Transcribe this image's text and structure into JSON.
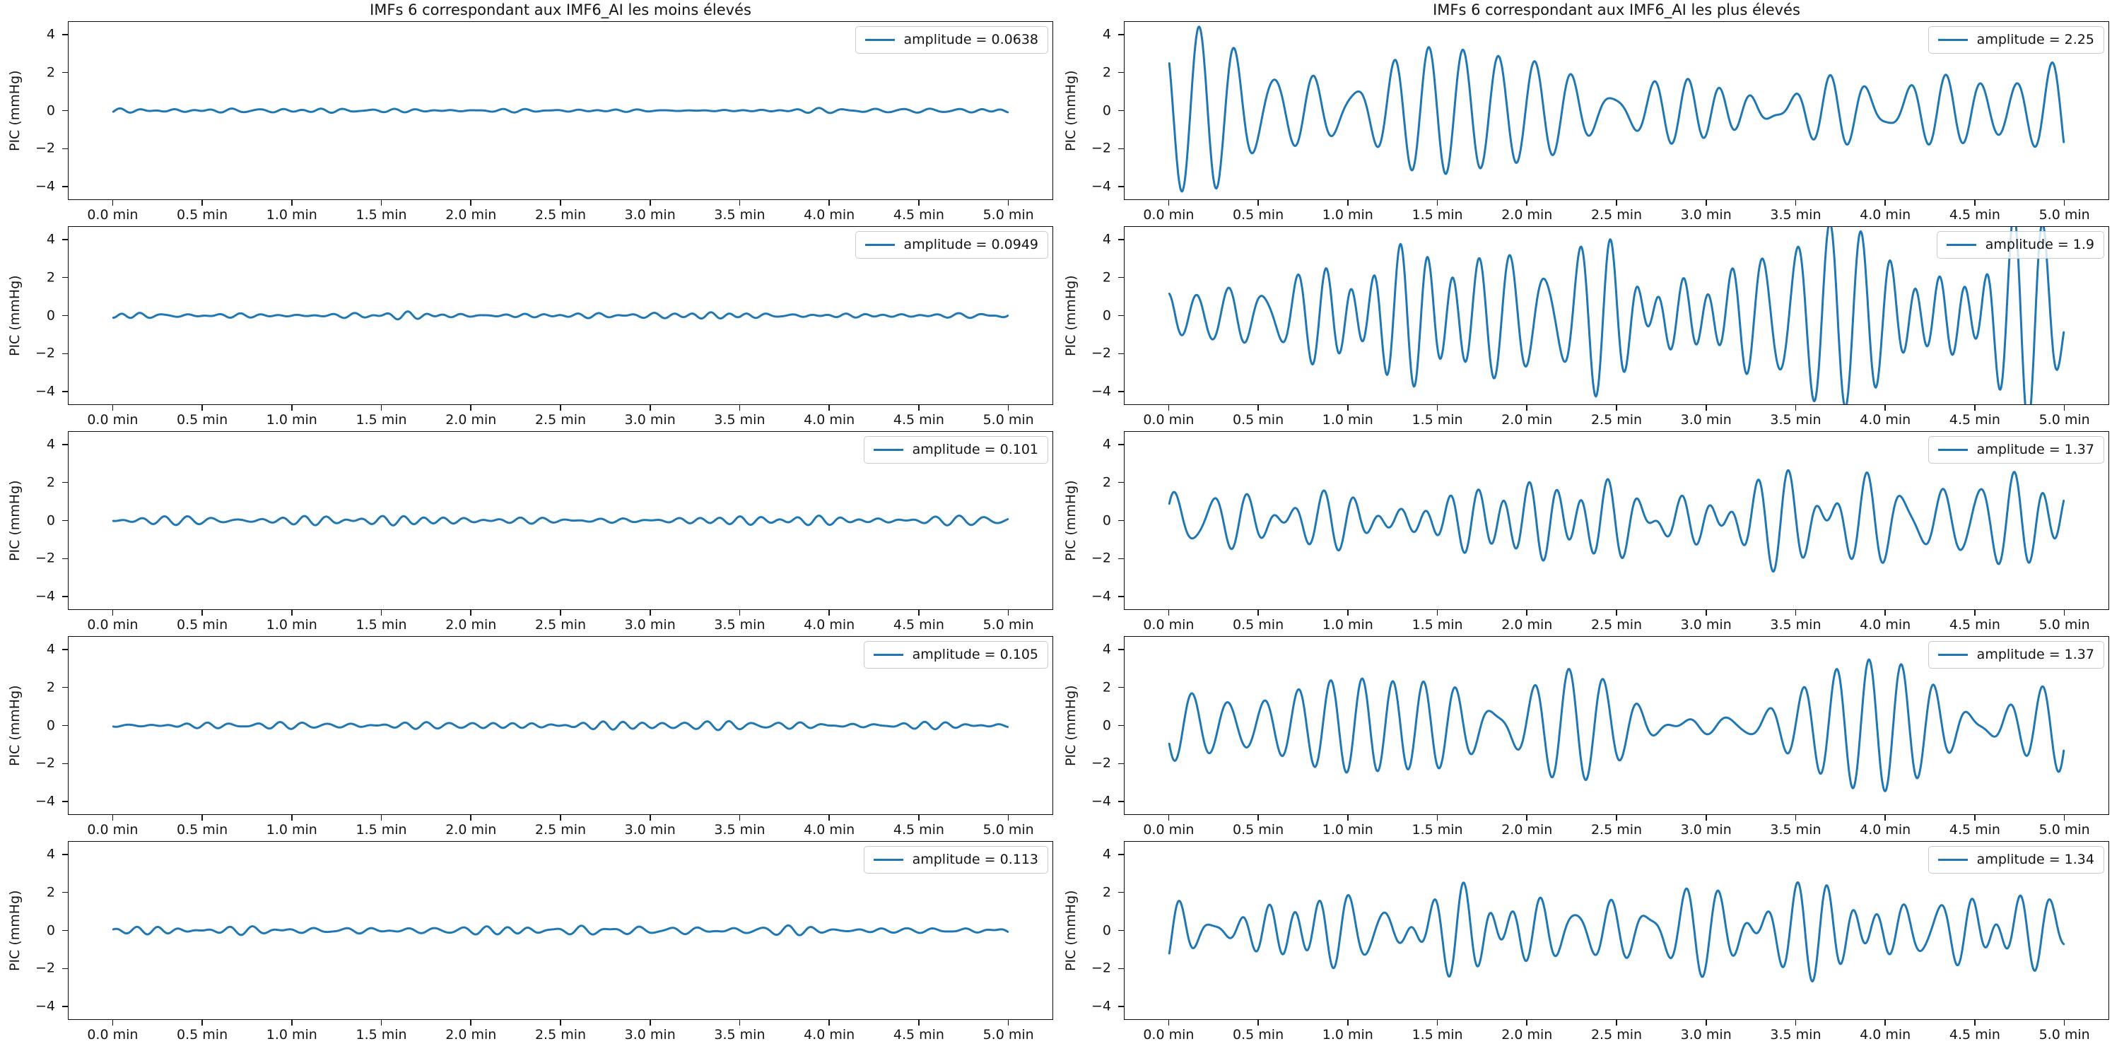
{
  "figure": {
    "background": "#ffffff",
    "text_color": "#141414",
    "line_color": "#1f77b4",
    "left_column_title": "IMFs 6 correspondant aux IMF6_AI les moins élevés",
    "right_column_title": "IMFs 6 correspondant aux IMF6_AI les plus élevés",
    "ylabel": "PIC  (mmHg)",
    "y_tick_labels": [
      "4",
      "2",
      "0",
      "−2",
      "−4"
    ],
    "y_tick_values": [
      4,
      2,
      0,
      -2,
      -4
    ],
    "x_tick_labels": [
      "0.0 min",
      "0.5 min",
      "1.0 min",
      "1.5 min",
      "2.0 min",
      "2.5 min",
      "3.0 min",
      "3.5 min",
      "4.0 min",
      "4.5 min",
      "5.0 min"
    ],
    "x_tick_values": [
      0,
      0.5,
      1,
      1.5,
      2,
      2.5,
      3,
      3.5,
      4,
      4.5,
      5
    ],
    "xlim": [
      -0.25,
      5.25
    ],
    "ylim": [
      -4.7,
      4.7
    ],
    "grid": "off",
    "legend_position": "upper right"
  },
  "chart_data": [
    {
      "type": "line",
      "column": "left",
      "row": 1,
      "title": "IMFs 6 correspondant aux IMF6_AI les moins élevés",
      "ylabel": "PIC  (mmHg)",
      "legend": "amplitude = 0.0638",
      "amplitude": 0.0638,
      "x_range_min": [
        0,
        5
      ],
      "ylim": [
        -4.7,
        4.7
      ],
      "x_unit": "min",
      "description": "near-flat oscillation around 0 mmHg, peak ≈ ±0.14",
      "synth": {
        "seed": 101,
        "peak": 0.14,
        "freq_cpm": [
          6,
          11
        ]
      }
    },
    {
      "type": "line",
      "column": "right",
      "row": 1,
      "title": "IMFs 6 correspondant aux IMF6_AI les plus élevés",
      "ylabel": "PIC  (mmHg)",
      "legend": "amplitude = 2.25",
      "amplitude": 2.25,
      "x_range_min": [
        0,
        5
      ],
      "ylim": [
        -4.7,
        4.7
      ],
      "x_unit": "min",
      "description": "large smooth oscillation, peaks ≈ ±4.4, ~25 cycles over 5 min",
      "synth": {
        "seed": 201,
        "peak": 4.45,
        "freq_cpm": [
          3.5,
          6.5
        ]
      }
    },
    {
      "type": "line",
      "column": "left",
      "row": 2,
      "ylabel": "PIC  (mmHg)",
      "legend": "amplitude = 0.0949",
      "amplitude": 0.0949,
      "x_range_min": [
        0,
        5
      ],
      "ylim": [
        -4.7,
        4.7
      ],
      "x_unit": "min",
      "description": "near-flat oscillation around 0 mmHg, peak ≈ ±0.22",
      "synth": {
        "seed": 102,
        "peak": 0.22,
        "freq_cpm": [
          6,
          11
        ]
      }
    },
    {
      "type": "line",
      "column": "right",
      "row": 2,
      "ylabel": "PIC  (mmHg)",
      "legend": "amplitude = 1.9",
      "amplitude": 1.9,
      "x_range_min": [
        0,
        5
      ],
      "ylim": [
        -4.7,
        4.7
      ],
      "x_unit": "min",
      "description": "spiky oscillation, some peaks clipped beyond ±4.7",
      "synth": {
        "seed": 202,
        "peak": 5.8,
        "freq_cpm": [
          4.5,
          8
        ]
      }
    },
    {
      "type": "line",
      "column": "left",
      "row": 3,
      "ylabel": "PIC  (mmHg)",
      "legend": "amplitude = 0.101",
      "amplitude": 0.101,
      "x_range_min": [
        0,
        5
      ],
      "ylim": [
        -4.7,
        4.7
      ],
      "x_unit": "min",
      "description": "near-flat oscillation around 0 mmHg, peak ≈ ±0.26",
      "synth": {
        "seed": 103,
        "peak": 0.26,
        "freq_cpm": [
          5.5,
          10
        ]
      }
    },
    {
      "type": "line",
      "column": "right",
      "row": 3,
      "ylabel": "PIC  (mmHg)",
      "legend": "amplitude = 1.37",
      "amplitude": 1.37,
      "x_range_min": [
        0,
        5
      ],
      "ylim": [
        -4.7,
        4.7
      ],
      "x_unit": "min",
      "description": "moderate oscillation, peaks ≈ ±2.7",
      "synth": {
        "seed": 203,
        "peak": 2.7,
        "freq_cpm": [
          4,
          7
        ]
      }
    },
    {
      "type": "line",
      "column": "left",
      "row": 4,
      "ylabel": "PIC  (mmHg)",
      "legend": "amplitude = 0.105",
      "amplitude": 0.105,
      "x_range_min": [
        0,
        5
      ],
      "ylim": [
        -4.7,
        4.7
      ],
      "x_unit": "min",
      "description": "near-flat oscillation around 0 mmHg, peak ≈ ±0.24",
      "synth": {
        "seed": 104,
        "peak": 0.24,
        "freq_cpm": [
          5.5,
          10
        ]
      }
    },
    {
      "type": "line",
      "column": "right",
      "row": 4,
      "ylabel": "PIC  (mmHg)",
      "legend": "amplitude = 1.37",
      "amplitude": 1.37,
      "x_range_min": [
        0,
        5
      ],
      "ylim": [
        -4.7,
        4.7
      ],
      "x_unit": "min",
      "description": "moderate oscillation, peaks ≈ +3.5 / −3.1",
      "synth": {
        "seed": 204,
        "peak": 3.5,
        "freq_cpm": [
          3.5,
          6.5
        ]
      }
    },
    {
      "type": "line",
      "column": "left",
      "row": 5,
      "ylabel": "PIC  (mmHg)",
      "legend": "amplitude = 0.113",
      "amplitude": 0.113,
      "x_range_min": [
        0,
        5
      ],
      "ylim": [
        -4.7,
        4.7
      ],
      "x_unit": "min",
      "description": "near-flat oscillation around 0 mmHg, peak ≈ ±0.27",
      "synth": {
        "seed": 105,
        "peak": 0.27,
        "freq_cpm": [
          5.5,
          10
        ]
      }
    },
    {
      "type": "line",
      "column": "right",
      "row": 5,
      "ylabel": "PIC  (mmHg)",
      "legend": "amplitude = 1.34",
      "amplitude": 1.34,
      "x_range_min": [
        0,
        5
      ],
      "ylim": [
        -4.7,
        4.7
      ],
      "x_unit": "min",
      "description": "moderate oscillation, peaks ≈ ±2.7",
      "synth": {
        "seed": 205,
        "peak": 2.7,
        "freq_cpm": [
          4,
          7.5
        ]
      }
    }
  ]
}
